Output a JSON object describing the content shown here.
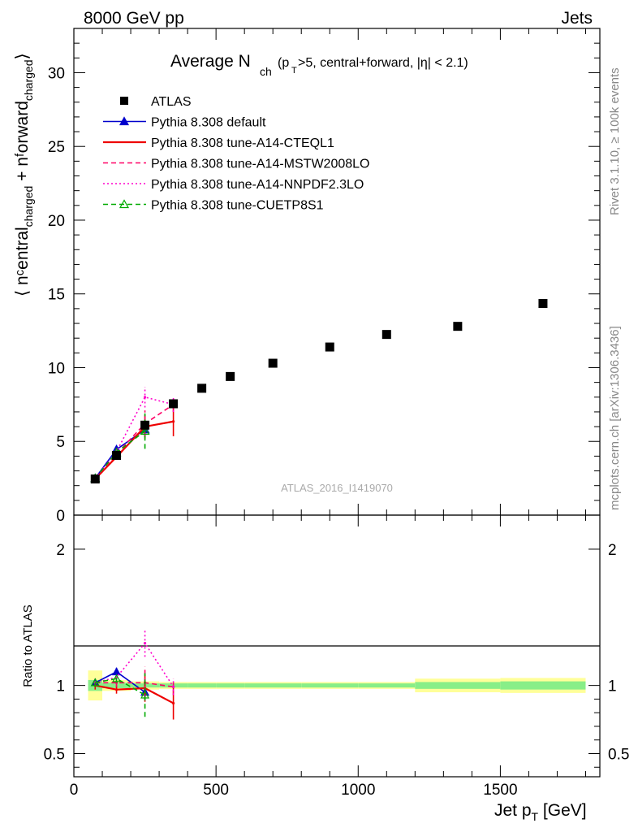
{
  "header": {
    "left": "8000 GeV pp",
    "right": "Jets",
    "title_main": "Average N",
    "title_sub": "ch",
    "title_rest": "(p",
    "title_rest_sub": "T",
    "title_rest2": ">5, central+forward, |η| < 2.1)"
  },
  "side": {
    "rivet": "Rivet 3.1.10, ≥ 100k events",
    "mcplots": "mcplots.cern.ch [arXiv:1306.3436]"
  },
  "watermark": "ATLAS_2016_I1419070",
  "axes": {
    "ylabel_main": "⟨ nᶜentral",
    "ylabel_main_sub": "charged",
    "ylabel_main_plus": " + nᶠorward",
    "ylabel_main_sub2": "charged",
    "ylabel_main_end": "⟩",
    "ylabel_ratio": "Ratio to ATLAS",
    "xlabel": "Jet p",
    "xlabel_sub": "T",
    "xlabel_unit": " [GeV]"
  },
  "chart_data": {
    "type": "scatter",
    "xlim": [
      0,
      1850
    ],
    "main_ylim": [
      0,
      33
    ],
    "ratio_ylim": [
      0.33,
      2.25
    ],
    "x_ticks": [
      0,
      500,
      1000,
      1500
    ],
    "main_y_ticks": [
      0,
      5,
      10,
      15,
      20,
      25,
      30
    ],
    "ratio_y_ticks": [
      0.5,
      1,
      2
    ],
    "data": {
      "name": "ATLAS",
      "bins": [
        [
          50,
          100
        ],
        [
          100,
          200
        ],
        [
          200,
          300
        ],
        [
          300,
          400
        ],
        [
          400,
          500
        ],
        [
          500,
          600
        ],
        [
          600,
          800
        ],
        [
          800,
          1000
        ],
        [
          1000,
          1200
        ],
        [
          1200,
          1500
        ],
        [
          1500,
          1800
        ]
      ],
      "x": [
        75,
        150,
        250,
        350,
        450,
        550,
        700,
        900,
        1100,
        1350,
        1650
      ],
      "y": [
        2.45,
        4.05,
        6.1,
        7.55,
        8.6,
        9.4,
        10.3,
        11.4,
        12.25,
        12.8,
        14.35
      ],
      "band_inner": [
        0.04,
        0.02,
        0.015,
        0.015,
        0.015,
        0.015,
        0.015,
        0.015,
        0.015,
        0.025,
        0.03
      ],
      "band_outer": [
        0.11,
        0.04,
        0.03,
        0.025,
        0.025,
        0.025,
        0.025,
        0.025,
        0.025,
        0.05,
        0.055
      ]
    },
    "series": [
      {
        "name": "Pythia 8.308 default",
        "color": "#0000cc",
        "style": "solid",
        "marker": "triangle-filled",
        "x": [
          75,
          150,
          250
        ],
        "y": [
          2.5,
          4.45,
          5.8
        ],
        "err": [
          0.1,
          0.2,
          0.5
        ],
        "ratio": [
          1.02,
          1.1,
          0.95
        ],
        "ratio_err": [
          0.03,
          0.03,
          0.06
        ]
      },
      {
        "name": "Pythia 8.308 tune-A14-CTEQL1",
        "color": "#ee0000",
        "style": "solid",
        "marker": "none",
        "x": [
          75,
          150,
          250,
          350
        ],
        "y": [
          2.45,
          3.95,
          6.0,
          6.35
        ],
        "err": [
          0.1,
          0.2,
          0.8,
          1.0
        ],
        "ratio": [
          1.0,
          0.97,
          0.98,
          0.87
        ],
        "ratio_err": [
          0.03,
          0.03,
          0.1,
          0.12
        ]
      },
      {
        "name": "Pythia 8.308 tune-A14-MSTW2008LO",
        "color": "#ff0066",
        "style": "dashed",
        "marker": "none",
        "x": [
          75,
          150,
          250,
          350
        ],
        "y": [
          2.5,
          4.15,
          6.2,
          7.5
        ],
        "err": [
          0.1,
          0.2,
          0.9,
          0.5
        ],
        "ratio": [
          1.02,
          1.02,
          1.02,
          0.99
        ],
        "ratio_err": [
          0.03,
          0.03,
          0.12,
          0.06
        ]
      },
      {
        "name": "Pythia 8.308 tune-A14-NNPDF2.3LO",
        "color": "#ff00cc",
        "style": "dotted",
        "marker": "none",
        "x": [
          75,
          150,
          250,
          350
        ],
        "y": [
          2.5,
          4.3,
          8.0,
          7.5
        ],
        "err": [
          0.1,
          0.2,
          0.7,
          0.5
        ],
        "ratio": [
          1.02,
          1.06,
          1.31,
          0.99
        ],
        "ratio_err": [
          0.03,
          0.03,
          0.1,
          0.06
        ]
      },
      {
        "name": "Pythia 8.308 tune-CUETP8S1",
        "color": "#00aa00",
        "style": "dashed",
        "marker": "triangle-open",
        "x": [
          75,
          150,
          250
        ],
        "y": [
          2.5,
          4.25,
          5.7
        ],
        "err": [
          0.1,
          0.2,
          1.2
        ],
        "ratio": [
          1.02,
          1.05,
          0.93
        ],
        "ratio_err": [
          0.03,
          0.03,
          0.16
        ]
      }
    ]
  }
}
